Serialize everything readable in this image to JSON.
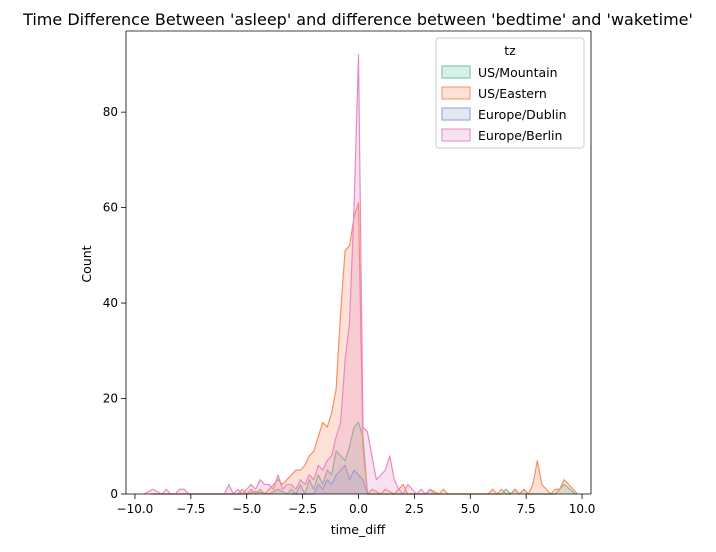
{
  "chart_data": {
    "type": "area",
    "title": "Time Difference Between 'asleep' and difference between 'bedtime' and 'waketime'",
    "xlabel": "time_diff",
    "ylabel": "Count",
    "xlim": [
      -10.4,
      10.4
    ],
    "ylim": [
      0,
      97
    ],
    "xticks": [
      -10.0,
      -7.5,
      -5.0,
      -2.5,
      0.0,
      2.5,
      5.0,
      7.5,
      10.0
    ],
    "xtick_labels": [
      "−10.0",
      "−7.5",
      "−5.0",
      "−2.5",
      "0.0",
      "2.5",
      "5.0",
      "7.5",
      "10.0"
    ],
    "yticks": [
      0,
      20,
      40,
      60,
      80
    ],
    "ytick_labels": [
      "0",
      "20",
      "40",
      "60",
      "80"
    ],
    "grid": false,
    "legend": {
      "title": "tz",
      "placement": "top-right"
    },
    "series": [
      {
        "name": "US/Mountain",
        "color": "#66c2a5",
        "x": [
          -9.2,
          -7.0,
          -5.0,
          -4.6,
          -4.0,
          -3.6,
          -3.2,
          -3.0,
          -2.8,
          -2.6,
          -2.4,
          -2.2,
          -2.0,
          -1.8,
          -1.6,
          -1.4,
          -1.2,
          -1.0,
          -0.8,
          -0.6,
          -0.4,
          -0.2,
          0.0,
          0.2,
          0.4,
          5.8,
          6.4,
          6.6,
          6.8,
          7.0,
          7.2,
          7.4,
          7.6,
          7.8,
          8.2,
          8.5,
          8.8,
          9.0,
          9.2,
          9.7
        ],
        "y": [
          0,
          0,
          0,
          0.5,
          0,
          1,
          0,
          1,
          0,
          2,
          0,
          3,
          1,
          4,
          2,
          5,
          4,
          9,
          8,
          7,
          10,
          14,
          15,
          12,
          0,
          0,
          0,
          1,
          0,
          1,
          0,
          1,
          0,
          0,
          0,
          0,
          0,
          1,
          2,
          0
        ]
      },
      {
        "name": "US/Eastern",
        "color": "#fc8d62",
        "x": [
          -9.3,
          -7.0,
          -5.4,
          -5.2,
          -5.0,
          -4.8,
          -4.6,
          -4.4,
          -4.2,
          -4.0,
          -3.8,
          -3.6,
          -3.4,
          -3.2,
          -3.0,
          -2.8,
          -2.6,
          -2.4,
          -2.2,
          -2.0,
          -1.8,
          -1.6,
          -1.4,
          -1.2,
          -1.0,
          -0.8,
          -0.6,
          -0.4,
          -0.2,
          0.0,
          0.2,
          0.4,
          0.6,
          1.0,
          1.2,
          1.6,
          2.0,
          2.2,
          3.0,
          3.2,
          3.6,
          3.8,
          4.0,
          4.2,
          5.8,
          6.0,
          6.2,
          6.4,
          6.6,
          6.8,
          7.0,
          7.2,
          7.4,
          7.6,
          7.8,
          8.0,
          8.2,
          8.4,
          8.6,
          8.8,
          9.0,
          9.2,
          9.4,
          9.6,
          9.8
        ],
        "y": [
          0,
          0,
          0,
          1,
          0,
          1,
          0,
          1,
          0,
          1,
          2,
          3,
          2,
          3,
          4,
          5,
          5,
          6,
          8,
          9,
          12,
          15,
          14,
          17,
          22,
          38,
          51,
          52,
          58,
          61,
          10,
          0,
          1,
          0,
          1,
          0,
          2,
          0,
          0,
          1,
          0,
          1,
          0,
          0,
          0,
          1,
          0,
          1,
          0,
          0,
          1,
          0,
          1,
          0,
          2,
          7,
          2,
          1,
          0,
          1,
          1,
          3,
          2,
          1,
          0
        ]
      },
      {
        "name": "Europe/Dublin",
        "color": "#8da0cb",
        "x": [
          -3.0,
          -2.4,
          -2.0,
          -1.8,
          -1.6,
          -1.4,
          -1.2,
          -1.0,
          -0.8,
          -0.6,
          -0.4,
          -0.2,
          0.0,
          0.2,
          0.4
        ],
        "y": [
          0,
          0,
          0,
          2,
          1,
          3,
          2,
          4,
          5,
          6,
          3,
          5,
          4,
          3,
          0
        ]
      },
      {
        "name": "Europe/Berlin",
        "color": "#e78ac3",
        "x": [
          -9.6,
          -9.2,
          -8.8,
          -8.6,
          -8.4,
          -8.2,
          -8.0,
          -7.8,
          -7.6,
          -7.4,
          -7.2,
          -7.0,
          -6.0,
          -5.8,
          -5.6,
          -5.4,
          -5.2,
          -5.0,
          -4.8,
          -4.6,
          -4.4,
          -4.2,
          -4.0,
          -3.8,
          -3.6,
          -3.4,
          -3.2,
          -3.0,
          -2.8,
          -2.6,
          -2.4,
          -2.2,
          -2.0,
          -1.8,
          -1.6,
          -1.4,
          -1.2,
          -1.0,
          -0.8,
          -0.6,
          -0.4,
          -0.2,
          0.0,
          0.2,
          0.4,
          0.6,
          0.8,
          1.0,
          1.2,
          1.4,
          1.6,
          1.8,
          2.0,
          2.2,
          2.4,
          2.6,
          2.8,
          3.0,
          3.2,
          3.4,
          3.6
        ],
        "y": [
          0,
          1,
          0,
          1,
          0,
          0,
          1,
          1,
          0,
          0,
          0,
          0,
          0,
          2,
          0,
          1,
          0,
          1,
          2,
          1,
          3,
          2,
          2,
          1,
          4,
          1,
          2,
          2,
          1,
          3,
          2,
          4,
          3,
          6,
          5,
          7,
          8,
          12,
          15,
          28,
          36,
          60,
          92,
          14,
          13,
          8,
          3,
          4,
          5,
          8,
          3,
          1,
          0,
          2,
          1,
          0,
          1,
          0,
          1,
          0,
          0
        ]
      }
    ]
  }
}
